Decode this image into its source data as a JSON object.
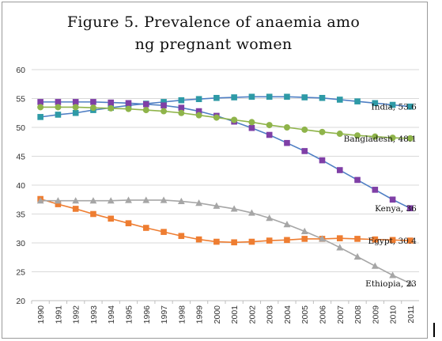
{
  "chart_data": {
    "type": "line",
    "title_line1": "Figure 5. Prevalence of anaemia amo",
    "title_line2": "ng pregnant women",
    "xlabel": "",
    "ylabel": "",
    "ylim": [
      20,
      60
    ],
    "yticks": [
      "20",
      "25",
      "30",
      "35",
      "40",
      "45",
      "50",
      "55",
      "60"
    ],
    "x": [
      "1990",
      "1991",
      "1992",
      "1993",
      "1994",
      "1995",
      "1996",
      "1997",
      "1998",
      "1999",
      "2000",
      "2001",
      "2002",
      "2003",
      "2004",
      "2005",
      "2006",
      "2007",
      "2008",
      "2009",
      "2010",
      "2011"
    ],
    "grid": "horizontal",
    "legend": "none",
    "series": [
      {
        "name": "India",
        "end_label": "India, 53.6",
        "color": "#2e9aa6",
        "line_color": "#4f7fc4",
        "marker": "square",
        "values": [
          51.8,
          52.2,
          52.5,
          53.0,
          53.4,
          53.8,
          54.1,
          54.4,
          54.7,
          54.9,
          55.1,
          55.2,
          55.3,
          55.3,
          55.3,
          55.2,
          55.1,
          54.8,
          54.5,
          54.2,
          53.9,
          53.6
        ]
      },
      {
        "name": "Kenya",
        "end_label": "Kenya, 36",
        "color": "#7f3fa6",
        "line_color": "#4f7fc4",
        "marker": "square",
        "values": [
          54.4,
          54.4,
          54.4,
          54.4,
          54.3,
          54.2,
          54.0,
          53.8,
          53.4,
          52.8,
          52.0,
          51.0,
          49.9,
          48.7,
          47.3,
          45.9,
          44.3,
          42.6,
          40.9,
          39.2,
          37.5,
          36.0
        ]
      },
      {
        "name": "Bangladesh",
        "end_label": "Bangladesh, 48.1",
        "color": "#8fb44a",
        "line_color": "#8fb44a",
        "marker": "circle",
        "values": [
          53.5,
          53.5,
          53.5,
          53.4,
          53.3,
          53.2,
          53.0,
          52.8,
          52.5,
          52.1,
          51.7,
          51.3,
          50.9,
          50.4,
          50.0,
          49.6,
          49.2,
          48.9,
          48.6,
          48.4,
          48.2,
          48.1
        ]
      },
      {
        "name": "Egypt",
        "end_label": "Egypt, 30.4",
        "color": "#ee7d31",
        "line_color": "#ee7d31",
        "marker": "square",
        "values": [
          37.6,
          36.7,
          35.9,
          35.0,
          34.2,
          33.4,
          32.6,
          31.9,
          31.2,
          30.6,
          30.2,
          30.1,
          30.2,
          30.4,
          30.5,
          30.7,
          30.7,
          30.8,
          30.7,
          30.6,
          30.5,
          30.4
        ]
      },
      {
        "name": "Ethiopia",
        "end_label": "Ethiopia, 23",
        "color": "#a6a6a6",
        "line_color": "#a6a6a6",
        "marker": "triangle",
        "values": [
          37.3,
          37.3,
          37.3,
          37.3,
          37.3,
          37.4,
          37.4,
          37.4,
          37.2,
          36.9,
          36.4,
          35.9,
          35.2,
          34.3,
          33.2,
          32.0,
          30.7,
          29.2,
          27.6,
          26.0,
          24.4,
          23.0
        ]
      }
    ]
  }
}
